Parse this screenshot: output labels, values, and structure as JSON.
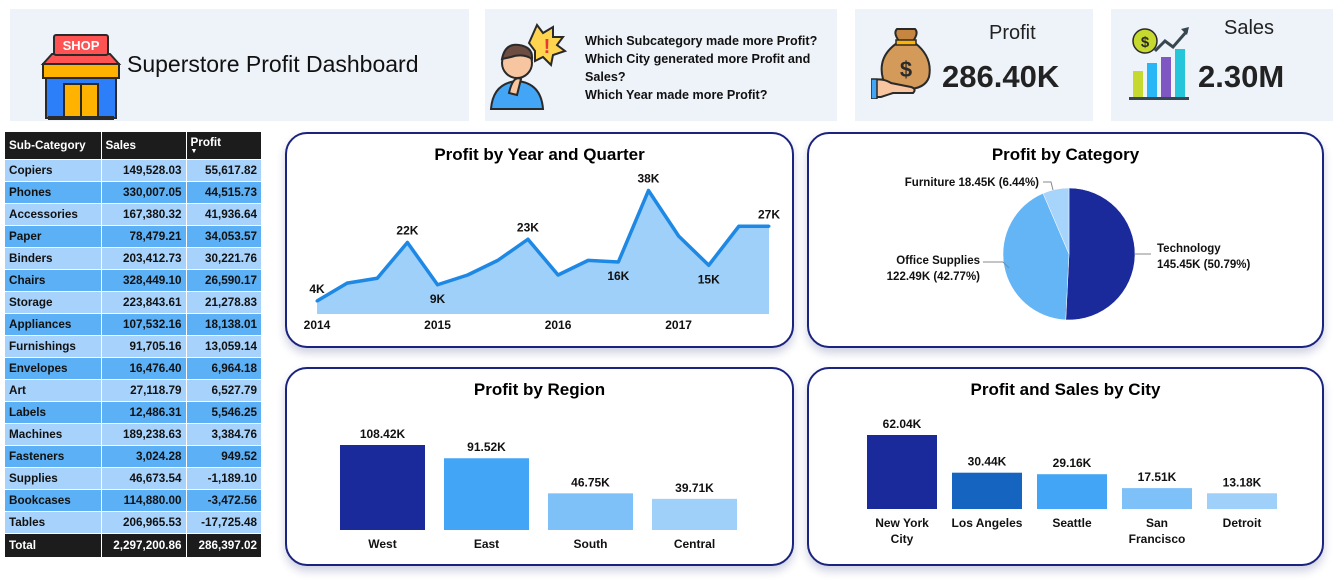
{
  "header": {
    "title": "Superstore Profit Dashboard",
    "shop_sign": "SHOP",
    "questions": [
      "Which Subcategory made more Profit?",
      "Which City generated more Profit and Sales?",
      "Which Year made more Profit?"
    ]
  },
  "kpis": {
    "profit": {
      "label": "Profit",
      "value": "286.40K"
    },
    "sales": {
      "label": "Sales",
      "value": "2.30M"
    }
  },
  "table": {
    "headers": [
      "Sub-Category",
      "Sales",
      "Profit"
    ],
    "rows": [
      [
        "Copiers",
        "149,528.03",
        "55,617.82"
      ],
      [
        "Phones",
        "330,007.05",
        "44,515.73"
      ],
      [
        "Accessories",
        "167,380.32",
        "41,936.64"
      ],
      [
        "Paper",
        "78,479.21",
        "34,053.57"
      ],
      [
        "Binders",
        "203,412.73",
        "30,221.76"
      ],
      [
        "Chairs",
        "328,449.10",
        "26,590.17"
      ],
      [
        "Storage",
        "223,843.61",
        "21,278.83"
      ],
      [
        "Appliances",
        "107,532.16",
        "18,138.01"
      ],
      [
        "Furnishings",
        "91,705.16",
        "13,059.14"
      ],
      [
        "Envelopes",
        "16,476.40",
        "6,964.18"
      ],
      [
        "Art",
        "27,118.79",
        "6,527.79"
      ],
      [
        "Labels",
        "12,486.31",
        "5,546.25"
      ],
      [
        "Machines",
        "189,238.63",
        "3,384.76"
      ],
      [
        "Fasteners",
        "3,024.28",
        "949.52"
      ],
      [
        "Supplies",
        "46,673.54",
        "-1,189.10"
      ],
      [
        "Bookcases",
        "114,880.00",
        "-3,472.56"
      ],
      [
        "Tables",
        "206,965.53",
        "-17,725.48"
      ]
    ],
    "total": [
      "Total",
      "2,297,200.86",
      "286,397.02"
    ]
  },
  "colors": {
    "dark_navy": "#1a2a9a",
    "mid_blue": "#42a5f5",
    "light_blue": "#90caf9",
    "pale_blue": "#bbdefb",
    "line_blue": "#1e88e5",
    "area_fill": "#9fd0fa"
  },
  "chart_data": [
    {
      "type": "area",
      "title": "Profit by Year and Quarter",
      "x_ticks": [
        "2014",
        "2015",
        "2016",
        "2017"
      ],
      "x": [
        "2014 Q1",
        "2014 Q2",
        "2014 Q3",
        "2014 Q4",
        "2015 Q1",
        "2015 Q2",
        "2015 Q3",
        "2015 Q4",
        "2016 Q1",
        "2016 Q2",
        "2016 Q3",
        "2016 Q4",
        "2017 Q1",
        "2017 Q2",
        "2017 Q3",
        "2017 Q4"
      ],
      "values": [
        4,
        9.5,
        11,
        22,
        9,
        12,
        16.5,
        23,
        12,
        16.5,
        16,
        38,
        24,
        15,
        27,
        27
      ],
      "point_labels": {
        "0": "4K",
        "3": "22K",
        "4": "9K",
        "7": "23K",
        "10": "16K",
        "11": "38K",
        "13": "15K",
        "15": "27K"
      },
      "ylim": [
        0,
        40
      ],
      "unit": "K"
    },
    {
      "type": "pie",
      "title": "Profit by Category",
      "slices": [
        {
          "name": "Technology",
          "value": 145.45,
          "label": "145.45K (50.79%)",
          "color": "#1a2a9a"
        },
        {
          "name": "Office Supplies",
          "value": 122.49,
          "label": "122.49K (42.77%)",
          "color": "#64b5f6"
        },
        {
          "name": "Furniture",
          "value": 18.45,
          "label": "18.45K (6.44%)",
          "color": "#a7d4fb"
        }
      ]
    },
    {
      "type": "bar",
      "title": "Profit by Region",
      "categories": [
        "West",
        "East",
        "South",
        "Central"
      ],
      "values": [
        108.42,
        91.52,
        46.75,
        39.71
      ],
      "labels": [
        "108.42K",
        "91.52K",
        "46.75K",
        "39.71K"
      ],
      "colors": [
        "#1a2a9a",
        "#42a5f5",
        "#7ec0f8",
        "#9fd0fa"
      ],
      "ylim": [
        0,
        108.42
      ]
    },
    {
      "type": "bar",
      "title": "Profit and Sales by City",
      "categories": [
        [
          "New York",
          "City"
        ],
        [
          "Los Angeles"
        ],
        [
          "Seattle"
        ],
        [
          "San",
          "Francisco"
        ],
        [
          "Detroit"
        ]
      ],
      "values": [
        62.04,
        30.44,
        29.16,
        17.51,
        13.18
      ],
      "labels": [
        "62.04K",
        "30.44K",
        "29.16K",
        "17.51K",
        "13.18K"
      ],
      "colors": [
        "#1a2a9a",
        "#1565c0",
        "#42a5f5",
        "#7ec0f8",
        "#9fd0fa"
      ],
      "ylim": [
        0,
        62.04
      ]
    }
  ]
}
